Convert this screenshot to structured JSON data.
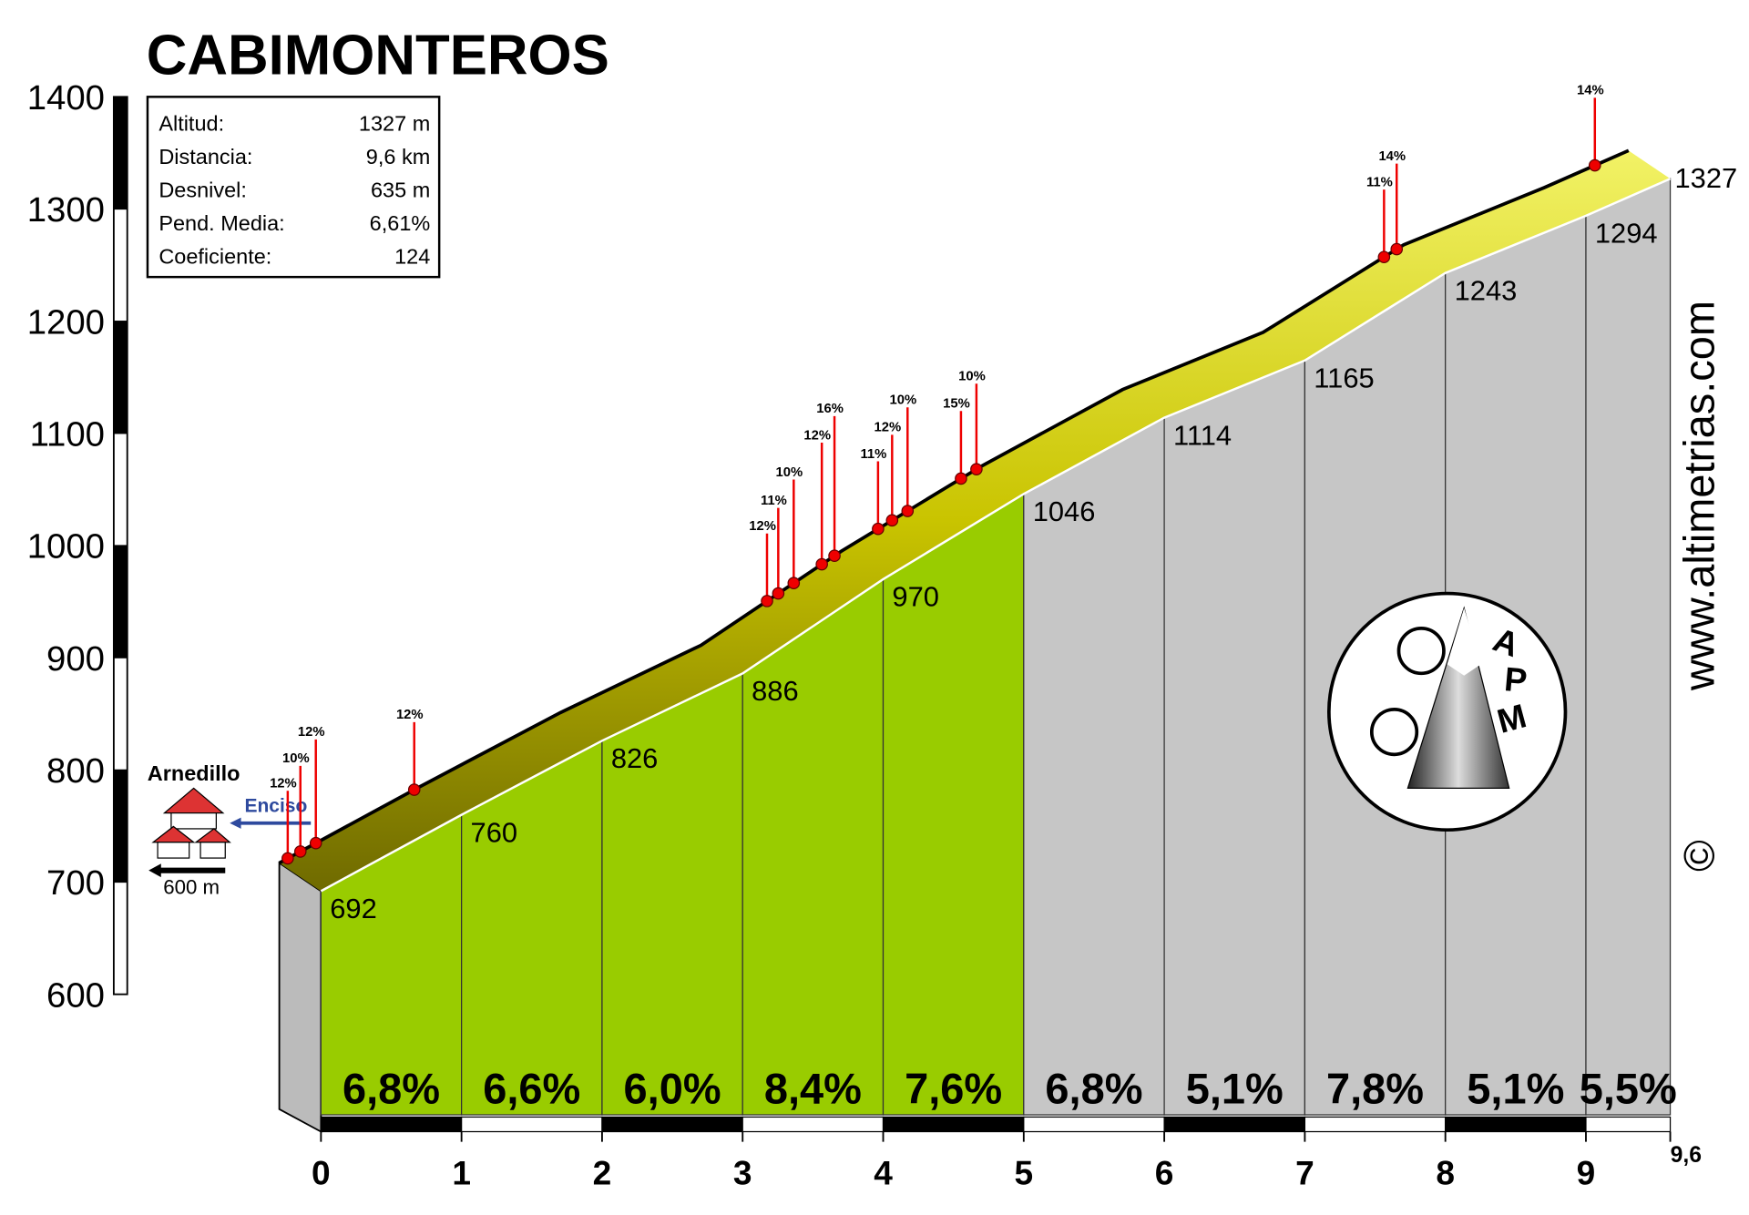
{
  "title": "CABIMONTEROS",
  "info": [
    {
      "label": "Altitud:",
      "value": "1327 m"
    },
    {
      "label": "Distancia:",
      "value": "9,6 km"
    },
    {
      "label": "Desnivel:",
      "value": "635 m"
    },
    {
      "label": "Pend. Media:",
      "value": "6,61%"
    },
    {
      "label": "Coeficiente:",
      "value": "124"
    }
  ],
  "chart_data": {
    "type": "profile",
    "x": [
      0,
      1,
      2,
      3,
      4,
      5,
      6,
      7,
      8,
      9,
      9.6
    ],
    "values": [
      692,
      760,
      826,
      886,
      970,
      1046,
      1114,
      1165,
      1243,
      1294,
      1327
    ],
    "xlim": [
      0,
      9.6
    ],
    "xticks": [
      0,
      1,
      2,
      3,
      4,
      5,
      6,
      7,
      8,
      9,
      {
        "value": 9.6,
        "label": "9,6"
      }
    ],
    "ylim": [
      600,
      1400
    ],
    "yticks": [
      600,
      700,
      800,
      900,
      1000,
      1100,
      1200,
      1300,
      1400
    ],
    "band_color": "#d4d400",
    "segments": {
      "values": [
        6.8,
        6.6,
        6.0,
        8.4,
        7.6,
        6.8,
        5.1,
        7.8,
        5.1,
        5.5
      ],
      "value_labels": [
        "6,8%",
        "6,6%",
        "6,0%",
        "8,4%",
        "7,6%",
        "6,8%",
        "5,1%",
        "7,8%",
        "5,1%",
        "5,5%"
      ],
      "colors": [
        "#99cc00",
        "#99cc00",
        "#99cc00",
        "#99cc00",
        "#99cc00",
        "#c6c6c6",
        "#c6c6c6",
        "#c6c6c6",
        "#c6c6c6",
        "#c6c6c6"
      ]
    },
    "ramps": [
      {
        "x": 0.06,
        "value": 12,
        "label": "12%"
      },
      {
        "x": 0.15,
        "value": 10,
        "label": "10%"
      },
      {
        "x": 0.26,
        "value": 12,
        "label": "12%"
      },
      {
        "x": 0.96,
        "value": 12,
        "label": "12%"
      },
      {
        "x": 3.47,
        "value": 12,
        "label": "12%"
      },
      {
        "x": 3.55,
        "value": 11,
        "label": "11%"
      },
      {
        "x": 3.66,
        "value": 10,
        "label": "10%"
      },
      {
        "x": 3.86,
        "value": 12,
        "label": "12%"
      },
      {
        "x": 3.95,
        "value": 16,
        "label": "16%"
      },
      {
        "x": 4.26,
        "value": 11,
        "label": "11%"
      },
      {
        "x": 4.36,
        "value": 12,
        "label": "12%"
      },
      {
        "x": 4.47,
        "value": 10,
        "label": "10%"
      },
      {
        "x": 4.85,
        "value": 15,
        "label": "15%"
      },
      {
        "x": 4.96,
        "value": 10,
        "label": "10%"
      },
      {
        "x": 7.86,
        "value": 11,
        "label": "11%"
      },
      {
        "x": 7.95,
        "value": 14,
        "label": "14%"
      },
      {
        "x": 9.36,
        "value": 14,
        "label": "14%"
      }
    ]
  },
  "start": {
    "town": "Arnedillo",
    "road": "Enciso",
    "distance": "600 m"
  },
  "credits": {
    "site": "www.altimetrias.com",
    "copyright": "©",
    "logo": [
      "A",
      "P",
      "M"
    ]
  }
}
